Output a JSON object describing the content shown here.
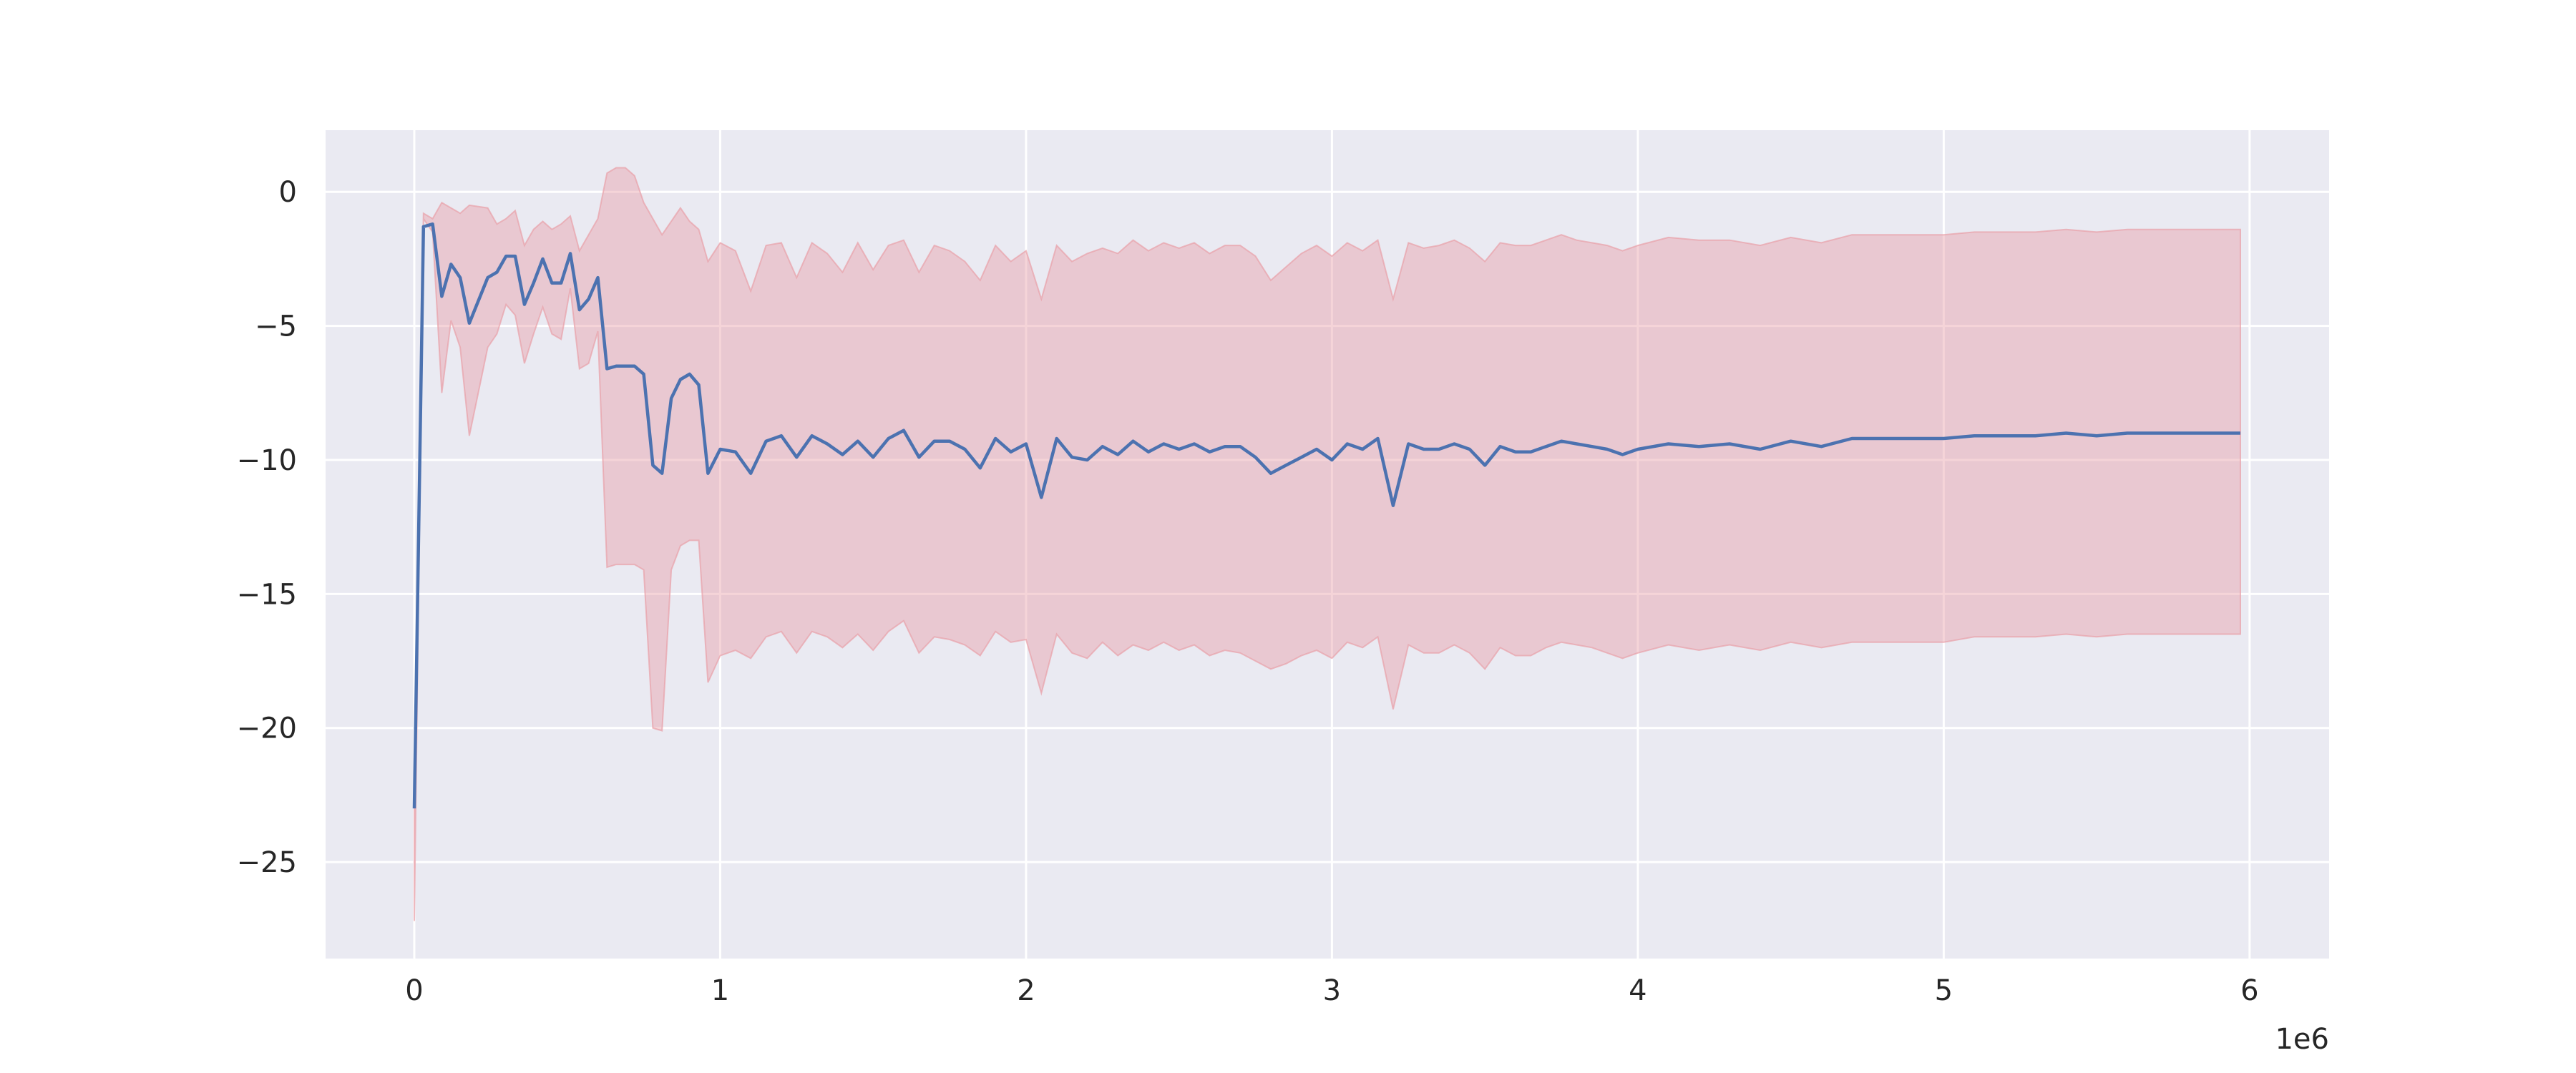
{
  "chart_data": {
    "type": "line",
    "title": "",
    "xlabel": "",
    "ylabel": "",
    "x_offset_label": "1e6",
    "xlim": [
      -0.29,
      6.26
    ],
    "ylim": [
      -28.6,
      2.3
    ],
    "x_ticks": [
      0,
      1,
      2,
      3,
      4,
      5,
      6
    ],
    "x_tick_labels": [
      "0",
      "1",
      "2",
      "3",
      "4",
      "5",
      "6"
    ],
    "y_ticks": [
      0,
      -5,
      -10,
      -15,
      -20,
      -25
    ],
    "y_tick_labels": [
      "0",
      "−5",
      "−10",
      "−15",
      "−20",
      "−25"
    ],
    "grid": true,
    "legend": "none",
    "colors": {
      "background": "#eaeaf2",
      "grid": "#ffffff",
      "line": "#4c72b0",
      "band": "#dd8452"
    },
    "series": [
      {
        "type": "line",
        "x": [
          0,
          0.03,
          0.06,
          0.09,
          0.12,
          0.15,
          0.18,
          0.24,
          0.27,
          0.3,
          0.33,
          0.36,
          0.39,
          0.42,
          0.45,
          0.48,
          0.51,
          0.54,
          0.57,
          0.6,
          0.63,
          0.66,
          0.69,
          0.72,
          0.75,
          0.78,
          0.81,
          0.84,
          0.87,
          0.9,
          0.93,
          0.96,
          1.0,
          1.05,
          1.1,
          1.15,
          1.2,
          1.25,
          1.3,
          1.35,
          1.4,
          1.45,
          1.5,
          1.55,
          1.6,
          1.65,
          1.7,
          1.75,
          1.8,
          1.85,
          1.9,
          1.95,
          2.0,
          2.05,
          2.1,
          2.15,
          2.2,
          2.25,
          2.3,
          2.35,
          2.4,
          2.45,
          2.5,
          2.55,
          2.6,
          2.65,
          2.7,
          2.75,
          2.8,
          2.85,
          2.9,
          2.95,
          3.0,
          3.05,
          3.1,
          3.15,
          3.2,
          3.25,
          3.3,
          3.35,
          3.4,
          3.45,
          3.5,
          3.55,
          3.6,
          3.65,
          3.7,
          3.75,
          3.8,
          3.85,
          3.9,
          3.95,
          4.0,
          4.1,
          4.2,
          4.3,
          4.4,
          4.5,
          4.6,
          4.7,
          4.8,
          4.9,
          5.0,
          5.1,
          5.2,
          5.3,
          5.4,
          5.5,
          5.6,
          5.7,
          5.8,
          5.9,
          5.97
        ],
        "y": [
          -23.0,
          -1.3,
          -1.2,
          -3.9,
          -2.7,
          -3.2,
          -4.9,
          -3.2,
          -3.0,
          -2.4,
          -2.4,
          -4.2,
          -3.4,
          -2.5,
          -3.4,
          -3.4,
          -2.3,
          -4.4,
          -4.0,
          -3.2,
          -6.6,
          -6.5,
          -6.5,
          -6.5,
          -6.8,
          -10.2,
          -10.5,
          -7.7,
          -7.0,
          -6.8,
          -7.2,
          -10.5,
          -9.6,
          -9.7,
          -10.5,
          -9.3,
          -9.1,
          -9.9,
          -9.1,
          -9.4,
          -9.8,
          -9.3,
          -9.9,
          -9.2,
          -8.9,
          -9.9,
          -9.3,
          -9.3,
          -9.6,
          -10.3,
          -9.2,
          -9.7,
          -9.4,
          -11.4,
          -9.2,
          -9.9,
          -10.0,
          -9.5,
          -9.8,
          -9.3,
          -9.7,
          -9.4,
          -9.6,
          -9.4,
          -9.7,
          -9.5,
          -9.5,
          -9.9,
          -10.5,
          -10.2,
          -9.9,
          -9.6,
          -10.0,
          -9.4,
          -9.6,
          -9.2,
          -11.7,
          -9.4,
          -9.6,
          -9.6,
          -9.4,
          -9.6,
          -10.2,
          -9.5,
          -9.7,
          -9.7,
          -9.5,
          -9.3,
          -9.4,
          -9.5,
          -9.6,
          -9.8,
          -9.6,
          -9.4,
          -9.5,
          -9.4,
          -9.6,
          -9.3,
          -9.5,
          -9.2,
          -9.2,
          -9.2,
          -9.2,
          -9.1,
          -9.1,
          -9.1,
          -9.0,
          -9.1,
          -9.0,
          -9.0,
          -9.0,
          -9.0,
          -9.0
        ],
        "band_lower": [
          -27.2,
          -1.0,
          -1.5,
          -7.5,
          -4.8,
          -5.8,
          -9.1,
          -5.8,
          -5.3,
          -4.2,
          -4.6,
          -6.4,
          -5.3,
          -4.3,
          -5.3,
          -5.5,
          -3.6,
          -6.6,
          -6.4,
          -5.2,
          -14.0,
          -13.9,
          -13.9,
          -13.9,
          -14.1,
          -20.0,
          -20.1,
          -14.1,
          -13.2,
          -13.0,
          -13.0,
          -18.3,
          -17.3,
          -17.1,
          -17.4,
          -16.6,
          -16.4,
          -17.2,
          -16.4,
          -16.6,
          -17.0,
          -16.5,
          -17.1,
          -16.4,
          -16.0,
          -17.2,
          -16.6,
          -16.7,
          -16.9,
          -17.3,
          -16.4,
          -16.8,
          -16.7,
          -18.7,
          -16.5,
          -17.2,
          -17.4,
          -16.8,
          -17.3,
          -16.9,
          -17.1,
          -16.8,
          -17.1,
          -16.9,
          -17.3,
          -17.1,
          -17.2,
          -17.5,
          -17.8,
          -17.6,
          -17.3,
          -17.1,
          -17.4,
          -16.8,
          -17.0,
          -16.6,
          -19.3,
          -16.9,
          -17.2,
          -17.2,
          -16.9,
          -17.2,
          -17.8,
          -17.0,
          -17.3,
          -17.3,
          -17.0,
          -16.8,
          -16.9,
          -17.0,
          -17.2,
          -17.4,
          -17.2,
          -16.9,
          -17.1,
          -16.9,
          -17.1,
          -16.8,
          -17.0,
          -16.8,
          -16.8,
          -16.8,
          -16.8,
          -16.6,
          -16.6,
          -16.6,
          -16.5,
          -16.6,
          -16.5,
          -16.5,
          -16.5,
          -16.5,
          -16.5
        ],
        "band_upper": [
          -23.0,
          -0.8,
          -1.0,
          -0.4,
          -0.6,
          -0.8,
          -0.5,
          -0.6,
          -1.2,
          -1.0,
          -0.7,
          -2.0,
          -1.4,
          -1.1,
          -1.4,
          -1.2,
          -0.9,
          -2.2,
          -1.6,
          -1.0,
          0.7,
          0.9,
          0.9,
          0.6,
          -0.4,
          -1.0,
          -1.6,
          -1.1,
          -0.6,
          -1.1,
          -1.4,
          -2.6,
          -1.9,
          -2.2,
          -3.7,
          -2.0,
          -1.9,
          -3.2,
          -1.9,
          -2.3,
          -3.0,
          -1.9,
          -2.9,
          -2.0,
          -1.8,
          -3.0,
          -2.0,
          -2.2,
          -2.6,
          -3.3,
          -2.0,
          -2.6,
          -2.2,
          -4.0,
          -2.0,
          -2.6,
          -2.3,
          -2.1,
          -2.3,
          -1.8,
          -2.2,
          -1.9,
          -2.1,
          -1.9,
          -2.3,
          -2.0,
          -2.0,
          -2.4,
          -3.3,
          -2.8,
          -2.3,
          -2.0,
          -2.4,
          -1.9,
          -2.2,
          -1.8,
          -4.0,
          -1.9,
          -2.1,
          -2.0,
          -1.8,
          -2.1,
          -2.6,
          -1.9,
          -2.0,
          -2.0,
          -1.8,
          -1.6,
          -1.8,
          -1.9,
          -2.0,
          -2.2,
          -2.0,
          -1.7,
          -1.8,
          -1.8,
          -2.0,
          -1.7,
          -1.9,
          -1.6,
          -1.6,
          -1.6,
          -1.6,
          -1.5,
          -1.5,
          -1.5,
          -1.4,
          -1.5,
          -1.4,
          -1.4,
          -1.4,
          -1.4,
          -1.4
        ]
      }
    ]
  }
}
